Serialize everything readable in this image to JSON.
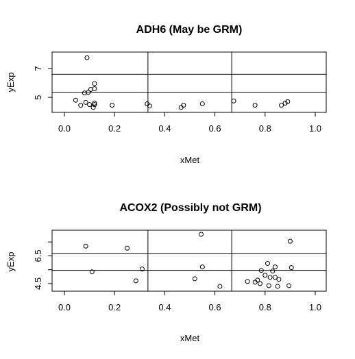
{
  "chart_data": [
    {
      "type": "scatter",
      "title": "ADH6 (May be GRM)",
      "xlabel": "xMet",
      "ylabel": "yExp",
      "xlim": [
        0,
        1
      ],
      "ylim": [
        4.1,
        8.0
      ],
      "xticks": [
        "0.0",
        "0.2",
        "0.4",
        "0.6",
        "0.8",
        "1.0"
      ],
      "yticks": [
        "5",
        "7"
      ],
      "ytick_values": [
        5,
        7
      ],
      "vlines": [
        0.333,
        0.667
      ],
      "hlines": [
        5.35,
        6.6
      ],
      "points": [
        {
          "x": 0.09,
          "y": 7.75
        },
        {
          "x": 0.12,
          "y": 5.95
        },
        {
          "x": 0.12,
          "y": 5.6
        },
        {
          "x": 0.105,
          "y": 5.55
        },
        {
          "x": 0.095,
          "y": 5.35
        },
        {
          "x": 0.08,
          "y": 5.3
        },
        {
          "x": 0.045,
          "y": 4.8
        },
        {
          "x": 0.085,
          "y": 4.65
        },
        {
          "x": 0.065,
          "y": 4.45
        },
        {
          "x": 0.1,
          "y": 4.5
        },
        {
          "x": 0.115,
          "y": 4.3
        },
        {
          "x": 0.12,
          "y": 4.5
        },
        {
          "x": 0.12,
          "y": 4.6
        },
        {
          "x": 0.19,
          "y": 4.45
        },
        {
          "x": 0.33,
          "y": 4.55
        },
        {
          "x": 0.34,
          "y": 4.4
        },
        {
          "x": 0.465,
          "y": 4.3
        },
        {
          "x": 0.475,
          "y": 4.45
        },
        {
          "x": 0.55,
          "y": 4.55
        },
        {
          "x": 0.675,
          "y": 4.75
        },
        {
          "x": 0.76,
          "y": 4.45
        },
        {
          "x": 0.865,
          "y": 4.45
        },
        {
          "x": 0.88,
          "y": 4.6
        },
        {
          "x": 0.89,
          "y": 4.7
        }
      ]
    },
    {
      "type": "scatter",
      "title": "ACOX2 (Possibly not GRM)",
      "xlabel": "xMet",
      "ylabel": "yExp",
      "xlim": [
        0,
        1
      ],
      "ylim": [
        4.1,
        8.2
      ],
      "xticks": [
        "0.0",
        "0.2",
        "0.4",
        "0.6",
        "0.8",
        "1.0"
      ],
      "yticks": [
        "4.5",
        "6.5"
      ],
      "ytick_values": [
        4.5,
        5.5,
        6.5,
        7.5
      ],
      "ytick_labeled": [
        true,
        false,
        true,
        false
      ],
      "vlines": [
        0.333,
        0.667
      ],
      "hlines": [
        5.45,
        6.65
      ],
      "points": [
        {
          "x": 0.085,
          "y": 7.2
        },
        {
          "x": 0.11,
          "y": 5.35
        },
        {
          "x": 0.25,
          "y": 7.05
        },
        {
          "x": 0.285,
          "y": 4.7
        },
        {
          "x": 0.31,
          "y": 5.55
        },
        {
          "x": 0.545,
          "y": 8.05
        },
        {
          "x": 0.55,
          "y": 5.7
        },
        {
          "x": 0.52,
          "y": 4.85
        },
        {
          "x": 0.62,
          "y": 4.3
        },
        {
          "x": 0.73,
          "y": 4.65
        },
        {
          "x": 0.76,
          "y": 4.6
        },
        {
          "x": 0.77,
          "y": 4.75
        },
        {
          "x": 0.785,
          "y": 5.45
        },
        {
          "x": 0.78,
          "y": 4.5
        },
        {
          "x": 0.8,
          "y": 5.1
        },
        {
          "x": 0.81,
          "y": 5.95
        },
        {
          "x": 0.815,
          "y": 4.35
        },
        {
          "x": 0.82,
          "y": 4.95
        },
        {
          "x": 0.83,
          "y": 5.4
        },
        {
          "x": 0.84,
          "y": 5.7
        },
        {
          "x": 0.84,
          "y": 4.95
        },
        {
          "x": 0.85,
          "y": 4.3
        },
        {
          "x": 0.855,
          "y": 4.8
        },
        {
          "x": 0.895,
          "y": 4.35
        },
        {
          "x": 0.9,
          "y": 7.55
        },
        {
          "x": 0.905,
          "y": 5.65
        }
      ]
    }
  ]
}
